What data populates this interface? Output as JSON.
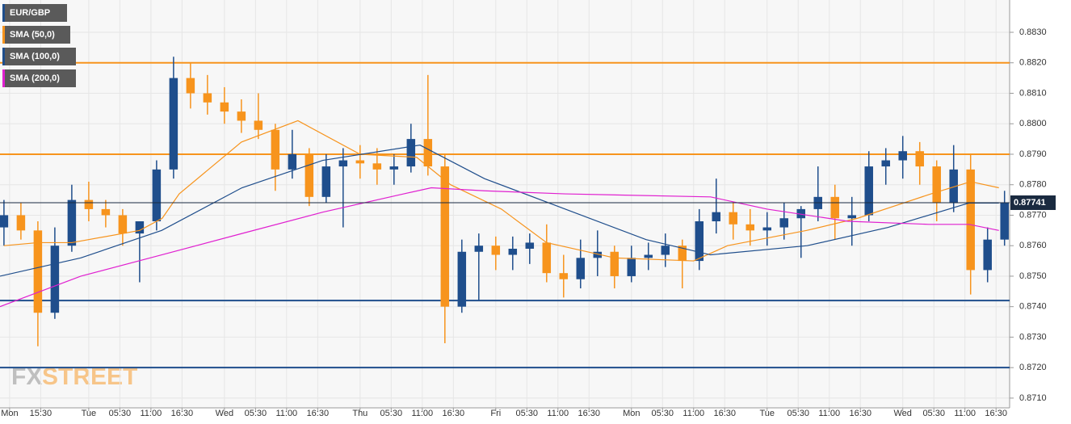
{
  "chart_data": {
    "type": "candlestick",
    "name": "EUR/GBP",
    "up_color": "#1f4e8c",
    "down_color": "#f7941d",
    "grid": true,
    "xlim": [
      8.3,
      186.9
    ],
    "ylim": [
      0.87068,
      0.88406
    ],
    "xticks": [
      {
        "value": 10,
        "label": "Mon"
      },
      {
        "value": 15.5,
        "label": "15:30"
      },
      {
        "value": 24,
        "label": "Tue"
      },
      {
        "value": 29.5,
        "label": "05:30"
      },
      {
        "value": 35,
        "label": "11:00"
      },
      {
        "value": 40.5,
        "label": "16:30"
      },
      {
        "value": 48,
        "label": "Wed"
      },
      {
        "value": 53.5,
        "label": "05:30"
      },
      {
        "value": 59,
        "label": "11:00"
      },
      {
        "value": 64.5,
        "label": "16:30"
      },
      {
        "value": 72,
        "label": "Thu"
      },
      {
        "value": 77.5,
        "label": "05:30"
      },
      {
        "value": 83,
        "label": "11:00"
      },
      {
        "value": 88.5,
        "label": "16:30"
      },
      {
        "value": 96,
        "label": "Fri"
      },
      {
        "value": 101.5,
        "label": "05:30"
      },
      {
        "value": 107,
        "label": "11:00"
      },
      {
        "value": 112.5,
        "label": "16:30"
      },
      {
        "value": 120,
        "label": "Mon"
      },
      {
        "value": 125.5,
        "label": "05:30"
      },
      {
        "value": 131,
        "label": "11:00"
      },
      {
        "value": 136.5,
        "label": "16:30"
      },
      {
        "value": 144,
        "label": "Tue"
      },
      {
        "value": 149.5,
        "label": "05:30"
      },
      {
        "value": 155,
        "label": "11:00"
      },
      {
        "value": 160.5,
        "label": "16:30"
      },
      {
        "value": 168,
        "label": "Wed"
      },
      {
        "value": 173.5,
        "label": "05:30"
      },
      {
        "value": 179,
        "label": "11:00"
      },
      {
        "value": 184.5,
        "label": "16:30"
      }
    ],
    "yticks": [
      {
        "value": 0.871,
        "label": "0.8710"
      },
      {
        "value": 0.872,
        "label": "0.8720"
      },
      {
        "value": 0.873,
        "label": "0.8730"
      },
      {
        "value": 0.874,
        "label": "0.8740"
      },
      {
        "value": 0.875,
        "label": "0.8750"
      },
      {
        "value": 0.876,
        "label": "0.8760"
      },
      {
        "value": 0.877,
        "label": "0.8770"
      },
      {
        "value": 0.878,
        "label": "0.8780"
      },
      {
        "value": 0.879,
        "label": "0.8790"
      },
      {
        "value": 0.88,
        "label": "0.8800"
      },
      {
        "value": 0.881,
        "label": "0.8810"
      },
      {
        "value": 0.882,
        "label": "0.8820"
      },
      {
        "value": 0.883,
        "label": "0.8830"
      }
    ],
    "x": [
      9,
      12,
      15,
      18,
      21,
      24,
      27,
      30,
      33,
      36,
      39,
      42,
      45,
      48,
      51,
      54,
      57,
      60,
      63,
      66,
      69,
      72,
      75,
      78,
      81,
      84,
      87,
      90,
      93,
      96,
      99,
      102,
      105,
      108,
      111,
      114,
      117,
      120,
      123,
      126,
      129,
      132,
      135,
      138,
      141,
      144,
      147,
      150,
      153,
      156,
      159,
      162,
      165,
      168,
      171,
      174,
      177,
      180,
      183,
      186
    ],
    "ohlc": [
      [
        0.8766,
        0.8775,
        0.876,
        0.877
      ],
      [
        0.877,
        0.8774,
        0.8762,
        0.8765
      ],
      [
        0.8765,
        0.8768,
        0.8727,
        0.8738
      ],
      [
        0.8738,
        0.8766,
        0.8736,
        0.876
      ],
      [
        0.876,
        0.878,
        0.8758,
        0.8775
      ],
      [
        0.8775,
        0.8781,
        0.8768,
        0.8772
      ],
      [
        0.8772,
        0.8775,
        0.8766,
        0.877
      ],
      [
        0.877,
        0.8772,
        0.876,
        0.8764
      ],
      [
        0.8764,
        0.8768,
        0.8748,
        0.8768
      ],
      [
        0.8768,
        0.8788,
        0.8765,
        0.8785
      ],
      [
        0.8785,
        0.8822,
        0.8782,
        0.8815
      ],
      [
        0.8815,
        0.882,
        0.8805,
        0.881
      ],
      [
        0.881,
        0.8816,
        0.8803,
        0.8807
      ],
      [
        0.8807,
        0.8812,
        0.88,
        0.8804
      ],
      [
        0.8804,
        0.8808,
        0.8797,
        0.8801
      ],
      [
        0.8801,
        0.881,
        0.8795,
        0.8798
      ],
      [
        0.8798,
        0.88,
        0.8778,
        0.8785
      ],
      [
        0.8785,
        0.8798,
        0.8782,
        0.879
      ],
      [
        0.879,
        0.8792,
        0.8773,
        0.8776
      ],
      [
        0.8776,
        0.879,
        0.8774,
        0.8786
      ],
      [
        0.8786,
        0.8792,
        0.8766,
        0.8788
      ],
      [
        0.8788,
        0.8793,
        0.8782,
        0.8787
      ],
      [
        0.8787,
        0.8792,
        0.878,
        0.8785
      ],
      [
        0.8785,
        0.879,
        0.878,
        0.8786
      ],
      [
        0.8786,
        0.88,
        0.8784,
        0.8795
      ],
      [
        0.8795,
        0.8816,
        0.8783,
        0.8786
      ],
      [
        0.8786,
        0.879,
        0.8728,
        0.874
      ],
      [
        0.874,
        0.8762,
        0.8738,
        0.8758
      ],
      [
        0.8758,
        0.8764,
        0.8742,
        0.876
      ],
      [
        0.876,
        0.8763,
        0.8752,
        0.8757
      ],
      [
        0.8757,
        0.8763,
        0.8752,
        0.8759
      ],
      [
        0.8759,
        0.8764,
        0.8754,
        0.8761
      ],
      [
        0.8761,
        0.8767,
        0.8748,
        0.8751
      ],
      [
        0.8751,
        0.8757,
        0.8743,
        0.8749
      ],
      [
        0.8749,
        0.8762,
        0.8746,
        0.8756
      ],
      [
        0.8756,
        0.8765,
        0.875,
        0.8758
      ],
      [
        0.8758,
        0.876,
        0.8746,
        0.875
      ],
      [
        0.875,
        0.876,
        0.8748,
        0.8756
      ],
      [
        0.8756,
        0.8761,
        0.8752,
        0.8757
      ],
      [
        0.8757,
        0.8764,
        0.8753,
        0.876
      ],
      [
        0.876,
        0.8762,
        0.8746,
        0.8755
      ],
      [
        0.8755,
        0.8772,
        0.8752,
        0.8768
      ],
      [
        0.8768,
        0.8782,
        0.8764,
        0.8771
      ],
      [
        0.8771,
        0.8774,
        0.8762,
        0.8767
      ],
      [
        0.8767,
        0.8772,
        0.876,
        0.8765
      ],
      [
        0.8765,
        0.8771,
        0.876,
        0.8766
      ],
      [
        0.8766,
        0.8774,
        0.8762,
        0.8769
      ],
      [
        0.8769,
        0.8773,
        0.8756,
        0.8772
      ],
      [
        0.8772,
        0.8786,
        0.8768,
        0.8776
      ],
      [
        0.8776,
        0.878,
        0.8762,
        0.8769
      ],
      [
        0.8769,
        0.8776,
        0.876,
        0.877
      ],
      [
        0.877,
        0.8791,
        0.8768,
        0.8786
      ],
      [
        0.8786,
        0.8792,
        0.878,
        0.8788
      ],
      [
        0.8788,
        0.8796,
        0.8782,
        0.8791
      ],
      [
        0.8791,
        0.8794,
        0.878,
        0.8786
      ],
      [
        0.8786,
        0.8788,
        0.8768,
        0.8774
      ],
      [
        0.8774,
        0.8793,
        0.8771,
        0.8785
      ],
      [
        0.8785,
        0.879,
        0.8744,
        0.8752
      ],
      [
        0.8752,
        0.8766,
        0.8748,
        0.8762
      ],
      [
        0.8762,
        0.8778,
        0.876,
        0.8774
      ]
    ],
    "series": [
      {
        "name": "SMA (50,0)",
        "color": "#f7941d",
        "x": [
          9,
          15,
          21,
          33,
          37,
          40,
          51,
          61,
          72,
          82,
          88,
          97,
          105,
          117,
          131,
          137,
          151,
          160,
          173,
          180,
          185
        ],
        "values": [
          0.876,
          0.8761,
          0.8761,
          0.8765,
          0.8769,
          0.8777,
          0.8794,
          0.8801,
          0.879,
          0.8789,
          0.878,
          0.8772,
          0.8761,
          0.8756,
          0.8755,
          0.876,
          0.8765,
          0.8769,
          0.8777,
          0.8781,
          0.8779
        ]
      },
      {
        "name": "SMA (100,0)",
        "color": "#1f4e8c",
        "x": [
          8.3,
          22.6,
          36.9,
          51.1,
          65.4,
          82.6,
          94,
          108.3,
          122.6,
          134,
          151.1,
          165.4,
          179.7,
          185
        ],
        "values": [
          0.875,
          0.8756,
          0.8765,
          0.8779,
          0.8788,
          0.8793,
          0.8782,
          0.8772,
          0.8762,
          0.8757,
          0.876,
          0.8766,
          0.8774,
          0.8774
        ]
      },
      {
        "name": "SMA (200,0)",
        "color": "#e020d0",
        "x": [
          8.3,
          22.6,
          36.9,
          51.1,
          65.4,
          79.7,
          84.6,
          94,
          108.3,
          134,
          144,
          158.3,
          172.6,
          179.7,
          185
        ],
        "values": [
          0.874,
          0.875,
          0.8757,
          0.8764,
          0.8771,
          0.8777,
          0.8779,
          0.8778,
          0.8777,
          0.8776,
          0.8772,
          0.8768,
          0.8767,
          0.8767,
          0.8765
        ]
      }
    ],
    "levels": [
      {
        "value": 0.882,
        "color": "#f7941d"
      },
      {
        "value": 0.879,
        "color": "#f7941d"
      },
      {
        "value": 0.8742,
        "color": "#1f4e8c"
      },
      {
        "value": 0.872,
        "color": "#1f4e8c"
      }
    ],
    "last_price": 0.87741,
    "watermark": {
      "fx": "FX",
      "street": "STREET"
    }
  }
}
